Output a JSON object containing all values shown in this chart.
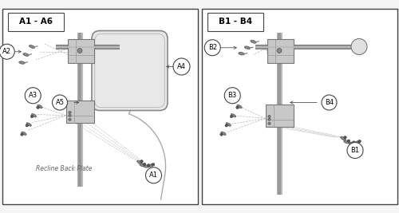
{
  "title_left": "A1 - A6",
  "title_right": "B1 - B4",
  "label_recline": "Recline Back Plate",
  "bg_color": "#f5f5f5",
  "panel_bg": "#f0f0f0",
  "border_color": "#444444",
  "pole_color": "#888888",
  "bracket_color": "#999999",
  "bracket_fill": "#cccccc",
  "headrest_fill": "#e0e0e0",
  "screw_color": "#555555",
  "dashed_color": "#aaaaaa",
  "label_font": 6.5,
  "figsize": [
    5.0,
    2.67
  ],
  "dpi": 100
}
